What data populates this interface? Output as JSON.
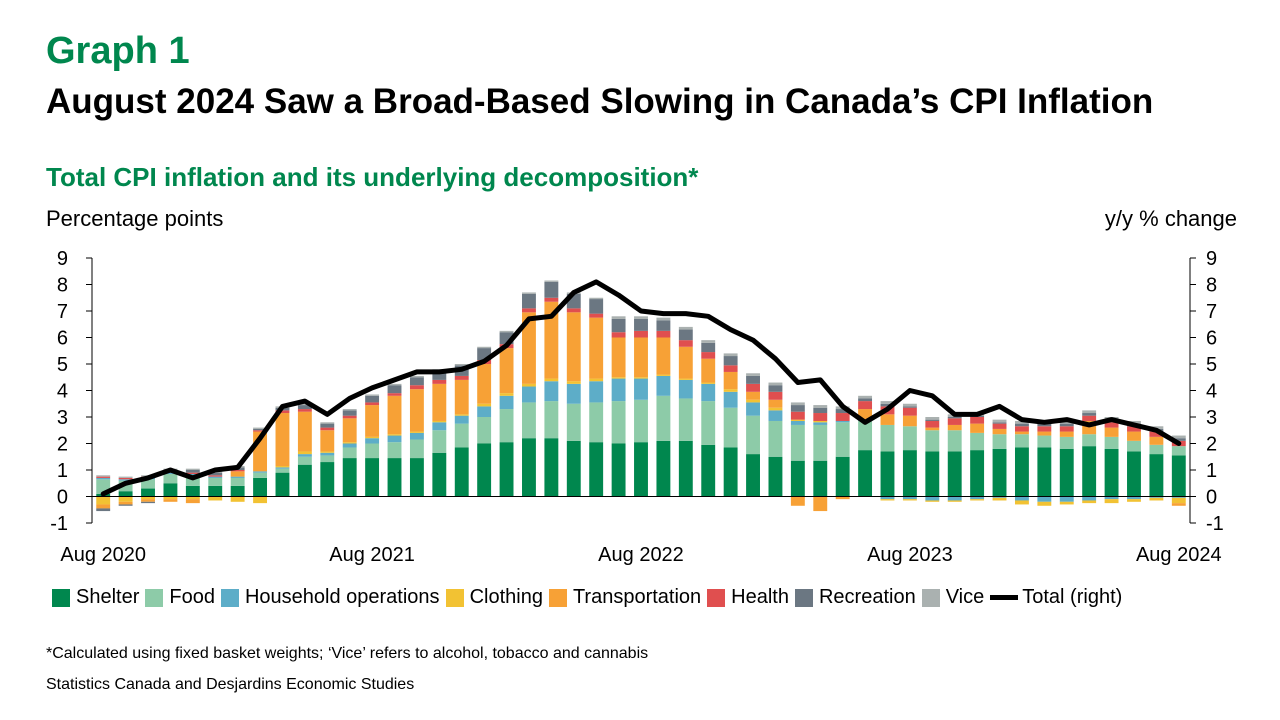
{
  "header": {
    "graph_label": "Graph 1",
    "title": "August 2024 Saw a Broad-Based Slowing in Canada’s CPI Inflation",
    "subtitle": "Total CPI inflation and its underlying decomposition*"
  },
  "footer": {
    "footnote": "*Calculated using fixed basket weights; ‘Vice’ refers to alcohol, tobacco and cannabis",
    "source": "Statistics Canada and Desjardins Economic Studies"
  },
  "colors": {
    "Shelter": "#00874E",
    "Food": "#8DCBA8",
    "Household operations": "#5DADC8",
    "Clothing": "#F2C233",
    "Transportation": "#F7A136",
    "Health": "#E04F4F",
    "Recreation": "#6B7782",
    "Vice": "#AAB1B0",
    "Total (right)": "#000000"
  },
  "chart_data": {
    "type": "bar",
    "stacked": true,
    "title": "Total CPI inflation and its underlying decomposition*",
    "ylabel_left": "Percentage points",
    "ylabel_right": "y/y % change",
    "ylim": [
      -1,
      9
    ],
    "yticks": [
      -1,
      0,
      1,
      2,
      3,
      4,
      5,
      6,
      7,
      8,
      9
    ],
    "x_tick_labels": [
      {
        "index": 0,
        "label": "Aug 2020"
      },
      {
        "index": 12,
        "label": "Aug 2021"
      },
      {
        "index": 24,
        "label": "Aug 2022"
      },
      {
        "index": 36,
        "label": "Aug 2023"
      },
      {
        "index": 48,
        "label": "Aug 2024"
      }
    ],
    "legend_position": "bottom",
    "categories": [
      "Aug 2020",
      "Sep 2020",
      "Oct 2020",
      "Nov 2020",
      "Dec 2020",
      "Jan 2021",
      "Feb 2021",
      "Mar 2021",
      "Apr 2021",
      "May 2021",
      "Jun 2021",
      "Jul 2021",
      "Aug 2021",
      "Sep 2021",
      "Oct 2021",
      "Nov 2021",
      "Dec 2021",
      "Jan 2022",
      "Feb 2022",
      "Mar 2022",
      "Apr 2022",
      "May 2022",
      "Jun 2022",
      "Jul 2022",
      "Aug 2022",
      "Sep 2022",
      "Oct 2022",
      "Nov 2022",
      "Dec 2022",
      "Jan 2023",
      "Feb 2023",
      "Mar 2023",
      "Apr 2023",
      "May 2023",
      "Jun 2023",
      "Jul 2023",
      "Aug 2023",
      "Sep 2023",
      "Oct 2023",
      "Nov 2023",
      "Dec 2023",
      "Jan 2024",
      "Feb 2024",
      "Mar 2024",
      "Apr 2024",
      "May 2024",
      "Jun 2024",
      "Jul 2024",
      "Aug 2024"
    ],
    "series": [
      {
        "name": "Shelter",
        "values": [
          0.1,
          0.2,
          0.3,
          0.5,
          0.4,
          0.4,
          0.4,
          0.7,
          0.9,
          1.2,
          1.3,
          1.45,
          1.45,
          1.45,
          1.45,
          1.65,
          1.85,
          2.0,
          2.05,
          2.2,
          2.2,
          2.1,
          2.05,
          2.0,
          2.05,
          2.1,
          2.1,
          1.95,
          1.85,
          1.6,
          1.5,
          1.35,
          1.35,
          1.5,
          1.75,
          1.7,
          1.75,
          1.7,
          1.7,
          1.75,
          1.8,
          1.85,
          1.85,
          1.8,
          1.9,
          1.8,
          1.7,
          1.6,
          1.55
        ]
      },
      {
        "name": "Food",
        "values": [
          0.55,
          0.4,
          0.35,
          0.35,
          0.4,
          0.3,
          0.3,
          0.2,
          0.15,
          0.3,
          0.25,
          0.4,
          0.55,
          0.6,
          0.7,
          0.85,
          0.9,
          1.0,
          1.25,
          1.35,
          1.4,
          1.4,
          1.5,
          1.6,
          1.6,
          1.7,
          1.6,
          1.65,
          1.5,
          1.45,
          1.35,
          1.35,
          1.35,
          1.3,
          1.1,
          1.0,
          0.9,
          0.8,
          0.8,
          0.65,
          0.55,
          0.5,
          0.45,
          0.45,
          0.45,
          0.45,
          0.4,
          0.35,
          0.35
        ]
      },
      {
        "name": "Household operations",
        "values": [
          0.05,
          0.05,
          0.05,
          0.05,
          0.05,
          0.05,
          0.05,
          0.05,
          0.05,
          0.1,
          0.1,
          0.15,
          0.2,
          0.25,
          0.25,
          0.3,
          0.3,
          0.4,
          0.5,
          0.6,
          0.75,
          0.75,
          0.8,
          0.85,
          0.8,
          0.75,
          0.7,
          0.65,
          0.6,
          0.5,
          0.4,
          0.15,
          0.1,
          0.05,
          0.05,
          -0.1,
          -0.1,
          -0.15,
          -0.15,
          -0.1,
          -0.05,
          -0.15,
          -0.2,
          -0.2,
          -0.15,
          -0.1,
          -0.1,
          -0.05,
          -0.05
        ]
      },
      {
        "name": "Clothing",
        "values": [
          -0.3,
          -0.2,
          -0.1,
          -0.1,
          -0.1,
          -0.15,
          -0.2,
          -0.25,
          0.05,
          0.1,
          0.05,
          0.05,
          0.05,
          0.05,
          0.05,
          0.05,
          0.05,
          0.1,
          0.1,
          0.1,
          0.1,
          0.1,
          0.1,
          0.05,
          0.05,
          0.05,
          0.05,
          0.05,
          0.1,
          0.1,
          0.1,
          0.05,
          0.05,
          0.0,
          0.0,
          -0.05,
          -0.05,
          -0.05,
          -0.05,
          -0.05,
          -0.1,
          -0.15,
          -0.15,
          -0.1,
          -0.1,
          -0.15,
          -0.1,
          -0.1,
          -0.2
        ]
      },
      {
        "name": "Transportation",
        "values": [
          -0.15,
          -0.1,
          -0.1,
          -0.1,
          -0.15,
          0.0,
          0.2,
          1.5,
          2.0,
          1.5,
          0.8,
          0.9,
          1.2,
          1.45,
          1.6,
          1.4,
          1.3,
          1.5,
          1.7,
          2.7,
          2.9,
          2.6,
          2.3,
          1.5,
          1.5,
          1.4,
          1.2,
          0.9,
          0.65,
          0.3,
          0.3,
          -0.35,
          -0.55,
          -0.1,
          0.4,
          0.4,
          0.4,
          0.1,
          0.2,
          0.35,
          0.2,
          0.1,
          0.15,
          0.2,
          0.5,
          0.35,
          0.35,
          0.3,
          -0.1
        ]
      },
      {
        "name": "Health",
        "values": [
          0.05,
          0.05,
          0.05,
          0.05,
          0.05,
          0.05,
          0.05,
          0.05,
          0.1,
          0.1,
          0.1,
          0.1,
          0.1,
          0.1,
          0.15,
          0.15,
          0.15,
          0.15,
          0.15,
          0.15,
          0.15,
          0.15,
          0.15,
          0.2,
          0.25,
          0.25,
          0.25,
          0.25,
          0.25,
          0.3,
          0.3,
          0.3,
          0.3,
          0.3,
          0.3,
          0.3,
          0.3,
          0.25,
          0.25,
          0.25,
          0.2,
          0.2,
          0.2,
          0.2,
          0.2,
          0.2,
          0.2,
          0.2,
          0.2
        ]
      },
      {
        "name": "Recreation",
        "values": [
          -0.1,
          -0.05,
          -0.05,
          0.05,
          0.1,
          0.1,
          0.1,
          0.05,
          0.1,
          0.15,
          0.15,
          0.2,
          0.25,
          0.3,
          0.3,
          0.35,
          0.4,
          0.45,
          0.45,
          0.55,
          0.6,
          0.55,
          0.55,
          0.5,
          0.45,
          0.4,
          0.4,
          0.35,
          0.35,
          0.3,
          0.25,
          0.25,
          0.2,
          0.15,
          0.1,
          0.1,
          0.05,
          0.05,
          0.05,
          0.05,
          0.05,
          0.1,
          0.1,
          0.1,
          0.1,
          0.1,
          0.1,
          0.1,
          0.1
        ]
      },
      {
        "name": "Vice",
        "values": [
          0.05,
          0.05,
          0.05,
          0.05,
          0.05,
          0.05,
          0.05,
          0.05,
          0.05,
          0.05,
          0.05,
          0.05,
          0.05,
          0.05,
          0.05,
          0.05,
          0.05,
          0.05,
          0.05,
          0.05,
          0.05,
          0.05,
          0.05,
          0.1,
          0.1,
          0.1,
          0.1,
          0.1,
          0.1,
          0.1,
          0.1,
          0.1,
          0.1,
          0.1,
          0.1,
          0.1,
          0.1,
          0.1,
          0.1,
          0.1,
          0.1,
          0.1,
          0.1,
          0.1,
          0.1,
          0.1,
          0.1,
          0.1,
          0.1
        ]
      }
    ],
    "total": {
      "name": "Total (right)",
      "values": [
        0.1,
        0.5,
        0.7,
        1.0,
        0.7,
        1.0,
        1.1,
        2.2,
        3.4,
        3.6,
        3.1,
        3.7,
        4.1,
        4.4,
        4.7,
        4.7,
        4.8,
        5.1,
        5.7,
        6.7,
        6.8,
        7.7,
        8.1,
        7.6,
        7.0,
        6.9,
        6.9,
        6.8,
        6.3,
        5.9,
        5.2,
        4.3,
        4.4,
        3.4,
        2.8,
        3.3,
        4.0,
        3.8,
        3.1,
        3.1,
        3.4,
        2.9,
        2.8,
        2.9,
        2.7,
        2.9,
        2.7,
        2.5,
        2.0
      ]
    }
  }
}
